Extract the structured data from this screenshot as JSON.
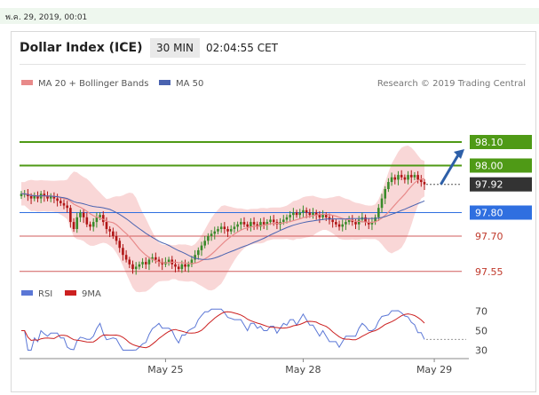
{
  "header": {
    "date_label": "พ.ค. 29, 2019, 00:01"
  },
  "widget": {
    "title": "Dollar Index (ICE)",
    "timeframe": "30 MIN",
    "time": "02:04:55 CET",
    "credit": "Research © 2019 Trading Central"
  },
  "colors": {
    "up_candle": "#3a8a2a",
    "down_candle": "#b01616",
    "ma20": "#e88a8a",
    "bands_fill": "#f8d0d0",
    "ma50": "#4a63b0",
    "resistance": "#4f9a16",
    "current_price": "#333333",
    "support_blue": "#2f6fe0",
    "support_red": "#d15b5b",
    "rsi": "#5b77d6",
    "rsi_ma": "#cc2020",
    "arrow": "#2d5fa8"
  },
  "chart_data": [
    {
      "type": "candlestick",
      "title": "Dollar Index (ICE)",
      "interval": "30 MIN",
      "legend": [
        {
          "name": "MA 20 + Bollinger Bands",
          "color": "#e88a8a"
        },
        {
          "name": "MA 50",
          "color": "#4a63b0"
        }
      ],
      "ylim": [
        97.48,
        98.28
      ],
      "x_ticks": [
        {
          "label": "May 25",
          "index": 44
        },
        {
          "label": "May 28",
          "index": 86
        },
        {
          "label": "May 29",
          "index": 126
        }
      ],
      "levels": [
        {
          "label": "98.10",
          "value": 98.1,
          "kind": "resistance",
          "style": "solid"
        },
        {
          "label": "98.00",
          "value": 98.0,
          "kind": "resistance",
          "style": "solid"
        },
        {
          "label": "97.92",
          "value": 97.92,
          "kind": "current",
          "style": "dotted"
        },
        {
          "label": "97.80",
          "value": 97.8,
          "kind": "support-blue",
          "style": "solid"
        },
        {
          "label": "97.70",
          "value": 97.7,
          "kind": "support-red",
          "style": "solid"
        },
        {
          "label": "97.55",
          "value": 97.55,
          "kind": "support-red",
          "style": "solid"
        }
      ],
      "target_arrow": {
        "from": [
          128,
          97.92
        ],
        "to": [
          138,
          98.07
        ]
      },
      "close": [
        97.88,
        97.88,
        97.87,
        97.86,
        97.87,
        97.86,
        97.88,
        97.87,
        97.86,
        97.87,
        97.86,
        97.85,
        97.84,
        97.83,
        97.82,
        97.76,
        97.73,
        97.78,
        97.8,
        97.78,
        97.75,
        97.74,
        97.76,
        97.78,
        97.79,
        97.76,
        97.73,
        97.72,
        97.7,
        97.68,
        97.65,
        97.62,
        97.6,
        97.58,
        97.56,
        97.57,
        97.58,
        97.59,
        97.58,
        97.6,
        97.61,
        97.6,
        97.59,
        97.58,
        97.59,
        97.6,
        97.58,
        97.57,
        97.56,
        97.58,
        97.57,
        97.58,
        97.6,
        97.62,
        97.64,
        97.66,
        97.68,
        97.7,
        97.71,
        97.72,
        97.73,
        97.74,
        97.73,
        97.72,
        97.73,
        97.74,
        97.75,
        97.76,
        97.75,
        97.74,
        97.76,
        97.75,
        97.74,
        97.76,
        97.75,
        97.76,
        97.77,
        97.76,
        97.75,
        97.76,
        97.77,
        97.78,
        97.79,
        97.8,
        97.79,
        97.8,
        97.81,
        97.8,
        97.79,
        97.8,
        97.79,
        97.78,
        97.79,
        97.78,
        97.77,
        97.76,
        97.75,
        97.74,
        97.75,
        97.76,
        97.77,
        97.76,
        97.75,
        97.77,
        97.78,
        97.76,
        97.75,
        97.76,
        97.78,
        97.82,
        97.86,
        97.9,
        97.93,
        97.95,
        97.94,
        97.96,
        97.95,
        97.94,
        97.96,
        97.95,
        97.96,
        97.94,
        97.93,
        97.92
      ],
      "rsi": {
        "legend": [
          {
            "name": "RSI",
            "color": "#5b77d6"
          },
          {
            "name": "9MA",
            "color": "#cc2020"
          }
        ],
        "ticks": [
          70,
          50,
          30
        ],
        "ylim": [
          25,
          75
        ]
      }
    }
  ]
}
